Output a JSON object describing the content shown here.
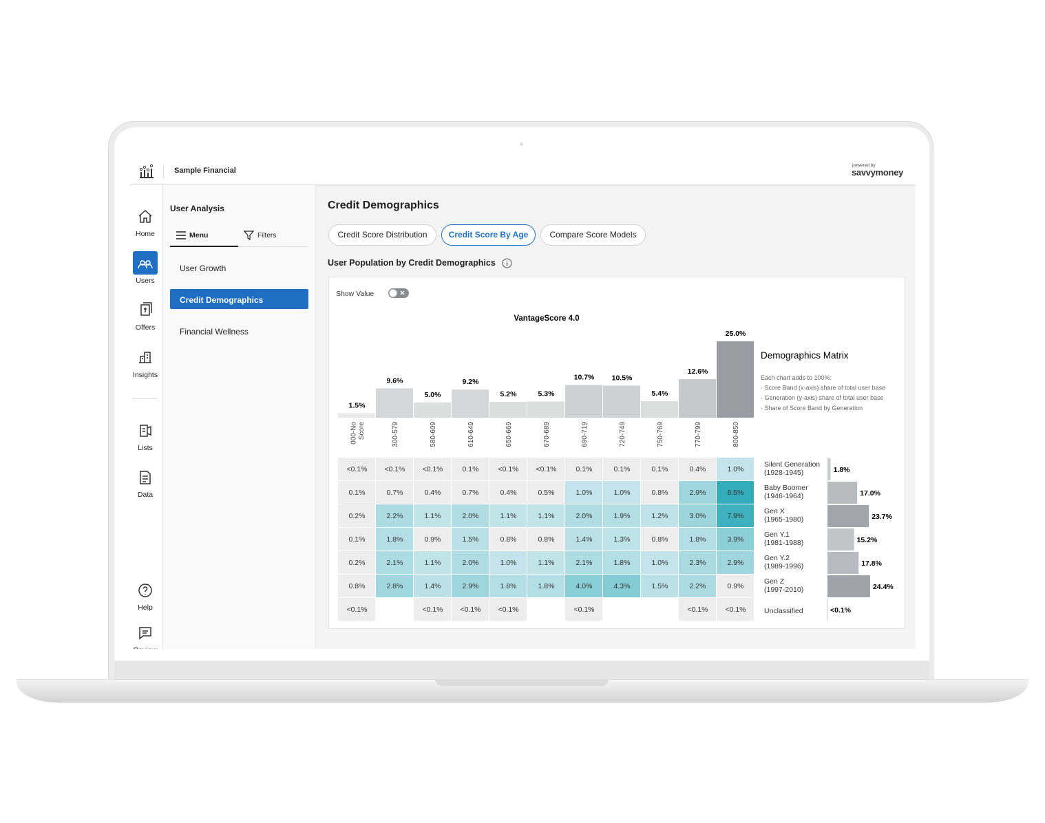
{
  "header": {
    "brand": "Sample Financial",
    "powered_by": "powered by",
    "logo": "savvymoney"
  },
  "nav": {
    "items": [
      "Home",
      "Users",
      "Offers",
      "Insights",
      "Lists",
      "Data",
      "Help",
      "Review"
    ],
    "active": 1
  },
  "panel": {
    "title": "User Analysis",
    "tabs": [
      "Menu",
      "Filters"
    ],
    "items": [
      "User Growth",
      "Credit Demographics",
      "Financial Wellness"
    ],
    "active": 1
  },
  "content": {
    "title": "Credit Demographics",
    "tabs": [
      "Credit Score Distribution",
      "Credit Score By Age",
      "Compare Score Models"
    ],
    "active_tab": 1,
    "section_title": "User Population by Credit Demographics",
    "toggle_label": "Show Value"
  },
  "chart_data": [
    {
      "type": "bar",
      "title": "VantageScore 4.0",
      "categories": [
        "000-No Score",
        "300-579",
        "580-609",
        "610-649",
        "650-669",
        "670-689",
        "690-719",
        "720-749",
        "750-769",
        "770-799",
        "800-850"
      ],
      "values": [
        1.5,
        9.6,
        5.0,
        9.2,
        5.2,
        5.3,
        10.7,
        10.5,
        5.4,
        12.6,
        25.0
      ],
      "value_labels": [
        "1.5%",
        "9.6%",
        "5.0%",
        "9.2%",
        "5.2%",
        "5.3%",
        "10.7%",
        "10.5%",
        "5.4%",
        "12.6%",
        "25.0%"
      ],
      "colors": [
        "#e8e8e8",
        "#d6d7d8",
        "#dcdddd",
        "#d6d7d8",
        "#dcdddd",
        "#dcdddd",
        "#cfd0d2",
        "#cfd0d2",
        "#dcdddd",
        "#c6c8ca",
        "#9a9ea3"
      ]
    },
    {
      "type": "table",
      "rows": [
        [
          "<0.1%",
          "<0.1%",
          "<0.1%",
          "0.1%",
          "<0.1%",
          "<0.1%",
          "0.1%",
          "0.1%",
          "0.1%",
          "0.4%",
          "1.0%"
        ],
        [
          "0.1%",
          "0.7%",
          "0.4%",
          "0.7%",
          "0.4%",
          "0.5%",
          "1.0%",
          "1.0%",
          "0.8%",
          "2.9%",
          "8.5%"
        ],
        [
          "0.2%",
          "2.2%",
          "1.1%",
          "2.0%",
          "1.1%",
          "1.1%",
          "2.0%",
          "1.9%",
          "1.2%",
          "3.0%",
          "7.9%"
        ],
        [
          "0.1%",
          "1.8%",
          "0.9%",
          "1.5%",
          "0.8%",
          "0.8%",
          "1.4%",
          "1.3%",
          "0.8%",
          "1.8%",
          "3.9%"
        ],
        [
          "0.2%",
          "2.1%",
          "1.1%",
          "2.0%",
          "1.0%",
          "1.1%",
          "2.1%",
          "1.8%",
          "1.0%",
          "2.3%",
          "2.9%"
        ],
        [
          "0.8%",
          "2.8%",
          "1.4%",
          "2.9%",
          "1.8%",
          "1.8%",
          "4.0%",
          "4.3%",
          "1.5%",
          "2.2%",
          "0.9%"
        ],
        [
          "<0.1%",
          null,
          "<0.1%",
          "<0.1%",
          "<0.1%",
          null,
          "<0.1%",
          null,
          null,
          "<0.1%",
          "<0.1%"
        ]
      ]
    },
    {
      "type": "hbar",
      "categories": [
        "Silent Generation\n(1928-1945)",
        "Baby Boomer\n(1946-1964)",
        "Gen X\n(1965-1980)",
        "Gen Y.1\n(1981-1988)",
        "Gen Y.2\n(1989-1996)",
        "Gen Z\n(1997-2010)",
        "Unclassified"
      ],
      "values": [
        1.8,
        17.0,
        23.7,
        15.2,
        17.8,
        24.4,
        null
      ],
      "value_labels": [
        "1.8%",
        "17.0%",
        "23.7%",
        "15.2%",
        "17.8%",
        "24.4%",
        "<0.1%"
      ],
      "colors": [
        "#c9cbcd",
        "#b9bcbf",
        "#a2a6ab",
        "#c2c4c7",
        "#b7babe",
        "#a0a4a9",
        "#c9cbcd"
      ]
    }
  ],
  "matrix_info": {
    "title": "Demographics Matrix",
    "notes": [
      "Each chart adds to 100%:",
      "· Score Band (x-axis) share of total user base",
      "· Generation (y-axis) share of total user base",
      "· Share of Score Band by Generation"
    ]
  }
}
